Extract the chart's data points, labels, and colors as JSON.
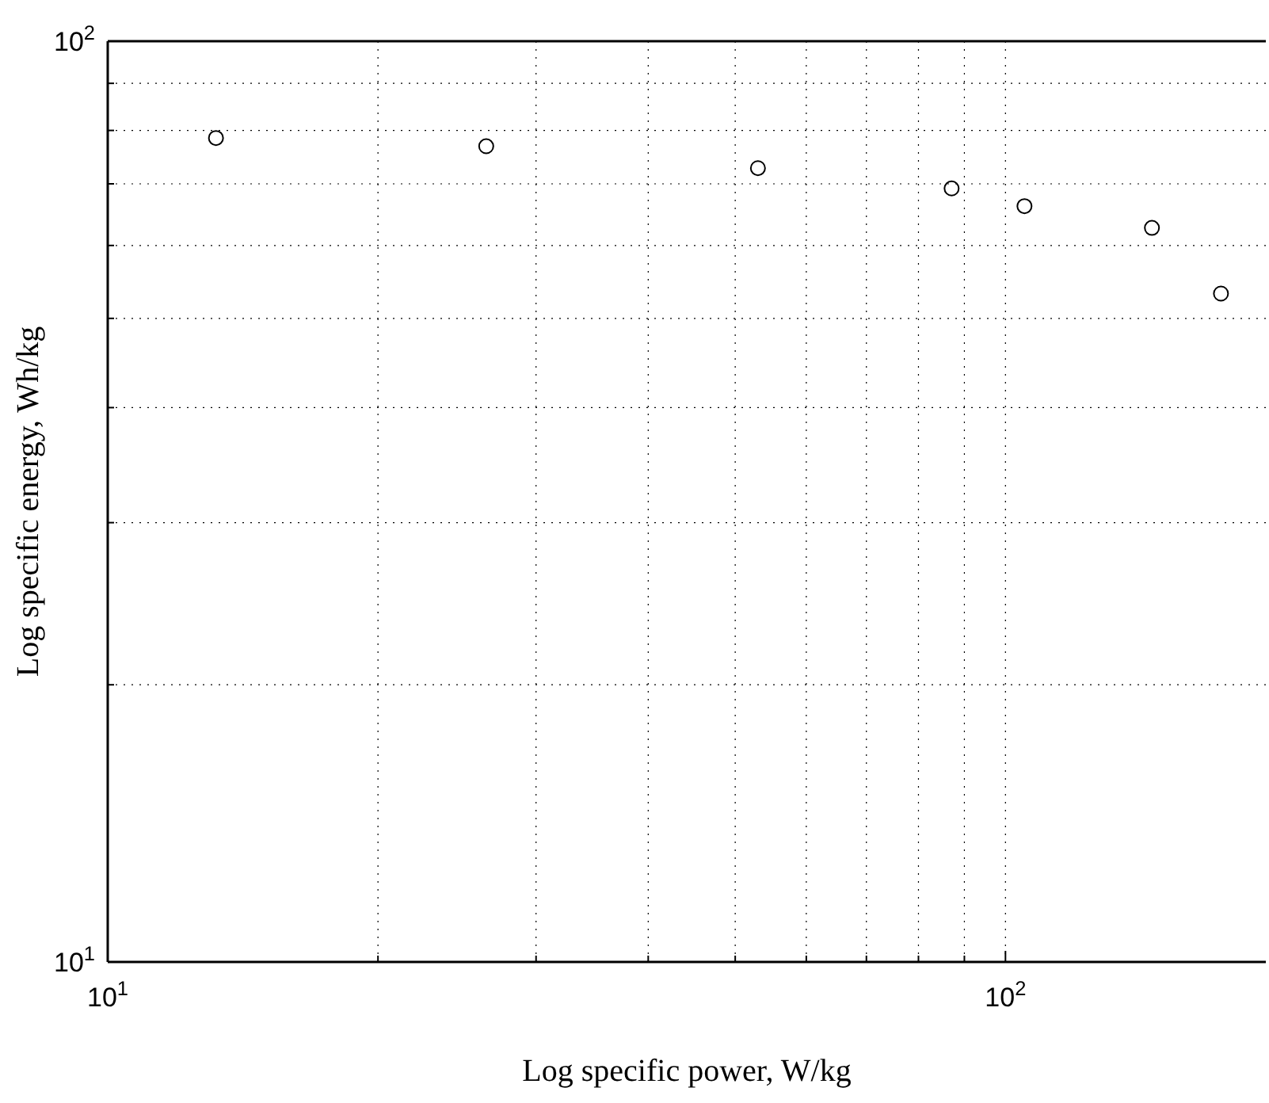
{
  "chart_data": {
    "type": "scatter",
    "xlabel": "Log specific power, W/kg",
    "ylabel": "Log specific energy, Wh/kg",
    "log": "xy",
    "grid": true,
    "marker": "circle",
    "xlim": [
      10,
      195
    ],
    "ylim": [
      10,
      100
    ],
    "xticks": [
      {
        "value": 10,
        "label": "10$^{1}$"
      },
      {
        "value": 20,
        "label": null
      },
      {
        "value": 30,
        "label": null
      },
      {
        "value": 40,
        "label": null
      },
      {
        "value": 50,
        "label": null
      },
      {
        "value": 60,
        "label": null
      },
      {
        "value": 70,
        "label": null
      },
      {
        "value": 80,
        "label": null
      },
      {
        "value": 90,
        "label": null
      },
      {
        "value": 100,
        "label": "10$^{2}$"
      }
    ],
    "yticks": [
      {
        "value": 10,
        "label": "10$^{1}$"
      },
      {
        "value": 20,
        "label": null
      },
      {
        "value": 30,
        "label": null
      },
      {
        "value": 40,
        "label": null
      },
      {
        "value": 50,
        "label": null
      },
      {
        "value": 60,
        "label": null
      },
      {
        "value": 70,
        "label": null
      },
      {
        "value": 80,
        "label": null
      },
      {
        "value": 90,
        "label": null
      },
      {
        "value": 100,
        "label": "10$^{2}$"
      }
    ],
    "series": [
      {
        "color": "#000000",
        "x": [
          13.2,
          26.4,
          53,
          87.1,
          105,
          145.6,
          173.8
        ],
        "values": [
          78.5,
          76.9,
          72.8,
          69.2,
          66.2,
          62.7,
          53.2
        ]
      }
    ]
  }
}
